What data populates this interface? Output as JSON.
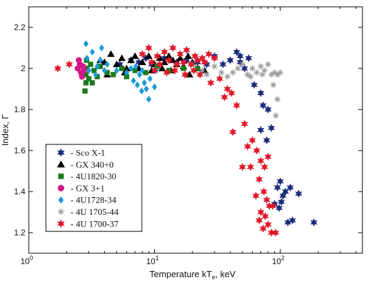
{
  "chart_data": {
    "type": "scatter",
    "title": "",
    "xlabel": "Temperature kT",
    "xlabel_sub": "e",
    "xlabel_unit": ", keV",
    "ylabel": "Index, Γ",
    "xscale": "log",
    "xlim": [
      1,
      450
    ],
    "ylim": [
      1.1,
      2.3
    ],
    "x_ticks": [
      {
        "value": 1,
        "base": "10",
        "exp": "0"
      },
      {
        "value": 10,
        "base": "10",
        "exp": "1"
      },
      {
        "value": 100,
        "base": "10",
        "exp": "2"
      }
    ],
    "y_ticks": [
      "1.2",
      "1.4",
      "1.6",
      "1.8",
      "2",
      "2.2"
    ],
    "grid": false,
    "legend_position": "lower-left",
    "series": [
      {
        "name": "- Sco X-1",
        "marker": "star",
        "color": "#1b2a7a",
        "points": [
          [
            5.3,
            2.02
          ],
          [
            6.5,
            2.04
          ],
          [
            7.5,
            2.03
          ],
          [
            8.5,
            2.05
          ],
          [
            9.5,
            2.02
          ],
          [
            12,
            2.05
          ],
          [
            15,
            2.03
          ],
          [
            18,
            2.04
          ],
          [
            22,
            2.03
          ],
          [
            26,
            2.02
          ],
          [
            30,
            2.06
          ],
          [
            35,
            2.02
          ],
          [
            40,
            2.04
          ],
          [
            45,
            2.08
          ],
          [
            48,
            2.06
          ],
          [
            52,
            2.0
          ],
          [
            56,
            2.05
          ],
          [
            48,
            2.03
          ],
          [
            62,
            1.92
          ],
          [
            70,
            1.88
          ],
          [
            73,
            1.82
          ],
          [
            80,
            1.8
          ],
          [
            85,
            1.71
          ],
          [
            70,
            1.7
          ],
          [
            78,
            1.65
          ],
          [
            90,
            1.34
          ],
          [
            95,
            1.42
          ],
          [
            100,
            1.45
          ],
          [
            105,
            1.38
          ],
          [
            110,
            1.4
          ],
          [
            98,
            1.32
          ],
          [
            120,
            1.42
          ],
          [
            140,
            1.39
          ],
          [
            125,
            1.26
          ],
          [
            115,
            1.25
          ],
          [
            185,
            1.25
          ],
          [
            102,
            1.35
          ]
        ]
      },
      {
        "name": "- GX 340+0",
        "marker": "triangle",
        "color": "#000000",
        "points": [
          [
            4.0,
            2.03
          ],
          [
            4.5,
            2.07
          ],
          [
            5.0,
            2.02
          ],
          [
            5.5,
            2.05
          ],
          [
            6.0,
            2.0
          ],
          [
            6.5,
            2.04
          ],
          [
            7.0,
            2.06
          ],
          [
            8.0,
            2.03
          ],
          [
            9.0,
            2.06
          ],
          [
            10.0,
            2.02
          ],
          [
            11.0,
            2.05
          ],
          [
            12.0,
            2.03
          ],
          [
            13.0,
            2.06
          ],
          [
            14.0,
            2.04
          ],
          [
            15.0,
            2.02
          ],
          [
            16.0,
            2.05
          ],
          [
            17.0,
            2.01
          ],
          [
            18.5,
            2.06
          ],
          [
            20.0,
            2.03
          ],
          [
            22.0,
            2.0
          ],
          [
            25.0,
            1.99
          ],
          [
            7.5,
            2.0
          ],
          [
            9.5,
            1.99
          ],
          [
            11.5,
            2.0
          ],
          [
            13.5,
            1.99
          ],
          [
            5.8,
            1.98
          ],
          [
            3.7,
            2.04
          ],
          [
            4.2,
            1.97
          ],
          [
            19.0,
            1.97
          ]
        ]
      },
      {
        "name": "- 4U1820-30",
        "marker": "square",
        "color": "#1a7a1a",
        "points": [
          [
            2.8,
            1.89
          ],
          [
            2.85,
            1.97
          ],
          [
            2.9,
            2.0
          ],
          [
            3.0,
            1.95
          ],
          [
            3.1,
            2.02
          ],
          [
            3.3,
            1.99
          ],
          [
            3.5,
            1.96
          ],
          [
            3.7,
            2.01
          ],
          [
            4.2,
            1.98
          ],
          [
            4.7,
            1.97
          ],
          [
            5.5,
            2.0
          ],
          [
            6.0,
            1.96
          ],
          [
            7.0,
            1.99
          ],
          [
            8.5,
            1.98
          ],
          [
            10.5,
            2.01
          ],
          [
            13.0,
            1.99
          ],
          [
            17.0,
            2.0
          ],
          [
            22.0,
            2.0
          ],
          [
            2.85,
            1.93
          ],
          [
            2.88,
            2.04
          ],
          [
            3.2,
            1.93
          ]
        ]
      },
      {
        "name": "- GX 3+1",
        "marker": "circle",
        "color": "#d4188a",
        "points": [
          [
            2.45,
            2.0
          ],
          [
            2.55,
            2.02
          ],
          [
            2.6,
            1.98
          ],
          [
            2.7,
            2.01
          ],
          [
            2.75,
            1.99
          ],
          [
            2.5,
            2.04
          ],
          [
            2.65,
            1.96
          ]
        ]
      },
      {
        "name": "- 4U1728-34",
        "marker": "diamond",
        "color": "#1a9ad8",
        "points": [
          [
            2.85,
            2.12
          ],
          [
            2.9,
            2.05
          ],
          [
            3.0,
            1.99
          ],
          [
            3.2,
            2.08
          ],
          [
            3.5,
            2.01
          ],
          [
            3.7,
            2.04
          ],
          [
            4.0,
            1.99
          ],
          [
            3.8,
            2.1
          ],
          [
            4.2,
            2.02
          ],
          [
            5.0,
            1.99
          ],
          [
            6.0,
            1.98
          ],
          [
            6.8,
            1.94
          ],
          [
            7.3,
            1.92
          ],
          [
            7.6,
            1.97
          ],
          [
            7.9,
            1.89
          ],
          [
            8.3,
            1.93
          ],
          [
            8.6,
            1.9
          ],
          [
            9.0,
            1.85
          ],
          [
            9.2,
            1.95
          ],
          [
            10.0,
            1.91
          ],
          [
            10.3,
            1.99
          ],
          [
            6.5,
            2.0
          ],
          [
            3.4,
            1.97
          ],
          [
            8.0,
            1.99
          ],
          [
            7.1,
            2.01
          ]
        ]
      },
      {
        "name": "- 4U 1705-44",
        "marker": "asterisk",
        "color": "#9a9a9a",
        "points": [
          [
            20,
            2.02
          ],
          [
            24,
            1.99
          ],
          [
            26,
            1.97
          ],
          [
            30,
            2.01
          ],
          [
            34,
            1.98
          ],
          [
            38,
            1.96
          ],
          [
            42,
            1.98
          ],
          [
            46,
            2.0
          ],
          [
            50,
            2.02
          ],
          [
            55,
            1.97
          ],
          [
            60,
            2.0
          ],
          [
            65,
            1.98
          ],
          [
            70,
            2.01
          ],
          [
            75,
            1.99
          ],
          [
            80,
            2.02
          ],
          [
            85,
            1.97
          ],
          [
            90,
            1.98
          ],
          [
            95,
            1.97
          ],
          [
            100,
            1.98
          ],
          [
            88,
            1.92
          ],
          [
            95,
            1.85
          ],
          [
            92,
            1.77
          ],
          [
            72,
            1.97
          ],
          [
            58,
            1.96
          ]
        ]
      },
      {
        "name": "- 4U 1700-37",
        "marker": "star",
        "color": "#e2182a",
        "points": [
          [
            1.7,
            2.0
          ],
          [
            2.1,
            2.02
          ],
          [
            8.0,
            2.07
          ],
          [
            9.0,
            2.1
          ],
          [
            10.5,
            2.06
          ],
          [
            12.0,
            2.08
          ],
          [
            14.0,
            2.1
          ],
          [
            16.0,
            2.07
          ],
          [
            18.0,
            2.09
          ],
          [
            21.0,
            2.06
          ],
          [
            24.0,
            2.05
          ],
          [
            27.0,
            2.07
          ],
          [
            30.0,
            2.05
          ],
          [
            9.5,
            2.03
          ],
          [
            11.0,
            2.02
          ],
          [
            13.0,
            2.04
          ],
          [
            15.0,
            2.02
          ],
          [
            17.0,
            2.03
          ],
          [
            19.5,
            2.02
          ],
          [
            22.0,
            2.04
          ],
          [
            25.0,
            2.03
          ],
          [
            10.0,
            1.99
          ],
          [
            12.5,
            1.98
          ],
          [
            14.5,
            1.99
          ],
          [
            17.5,
            1.97
          ],
          [
            20.5,
            1.99
          ],
          [
            23.0,
            1.97
          ],
          [
            28.0,
            1.93
          ],
          [
            33.0,
            1.95
          ],
          [
            38.0,
            1.9
          ],
          [
            41.0,
            1.88
          ],
          [
            36.0,
            1.86
          ],
          [
            45.0,
            1.82
          ],
          [
            42.0,
            1.69
          ],
          [
            52.0,
            1.73
          ],
          [
            60.0,
            1.65
          ],
          [
            65.0,
            1.6
          ],
          [
            55.0,
            1.62
          ],
          [
            70.0,
            1.55
          ],
          [
            75.0,
            1.52
          ],
          [
            80.0,
            1.57
          ],
          [
            58.0,
            1.52
          ],
          [
            50.0,
            1.52
          ],
          [
            68.0,
            1.46
          ],
          [
            74.0,
            1.4
          ],
          [
            78.0,
            1.36
          ],
          [
            82.0,
            1.33
          ],
          [
            70.0,
            1.3
          ],
          [
            76.0,
            1.28
          ],
          [
            68.0,
            1.26
          ],
          [
            80.0,
            1.24
          ],
          [
            73.0,
            1.22
          ],
          [
            85.0,
            1.2
          ],
          [
            92.0,
            1.2
          ],
          [
            87.0,
            1.33
          ],
          [
            64.0,
            1.38
          ]
        ]
      }
    ]
  }
}
